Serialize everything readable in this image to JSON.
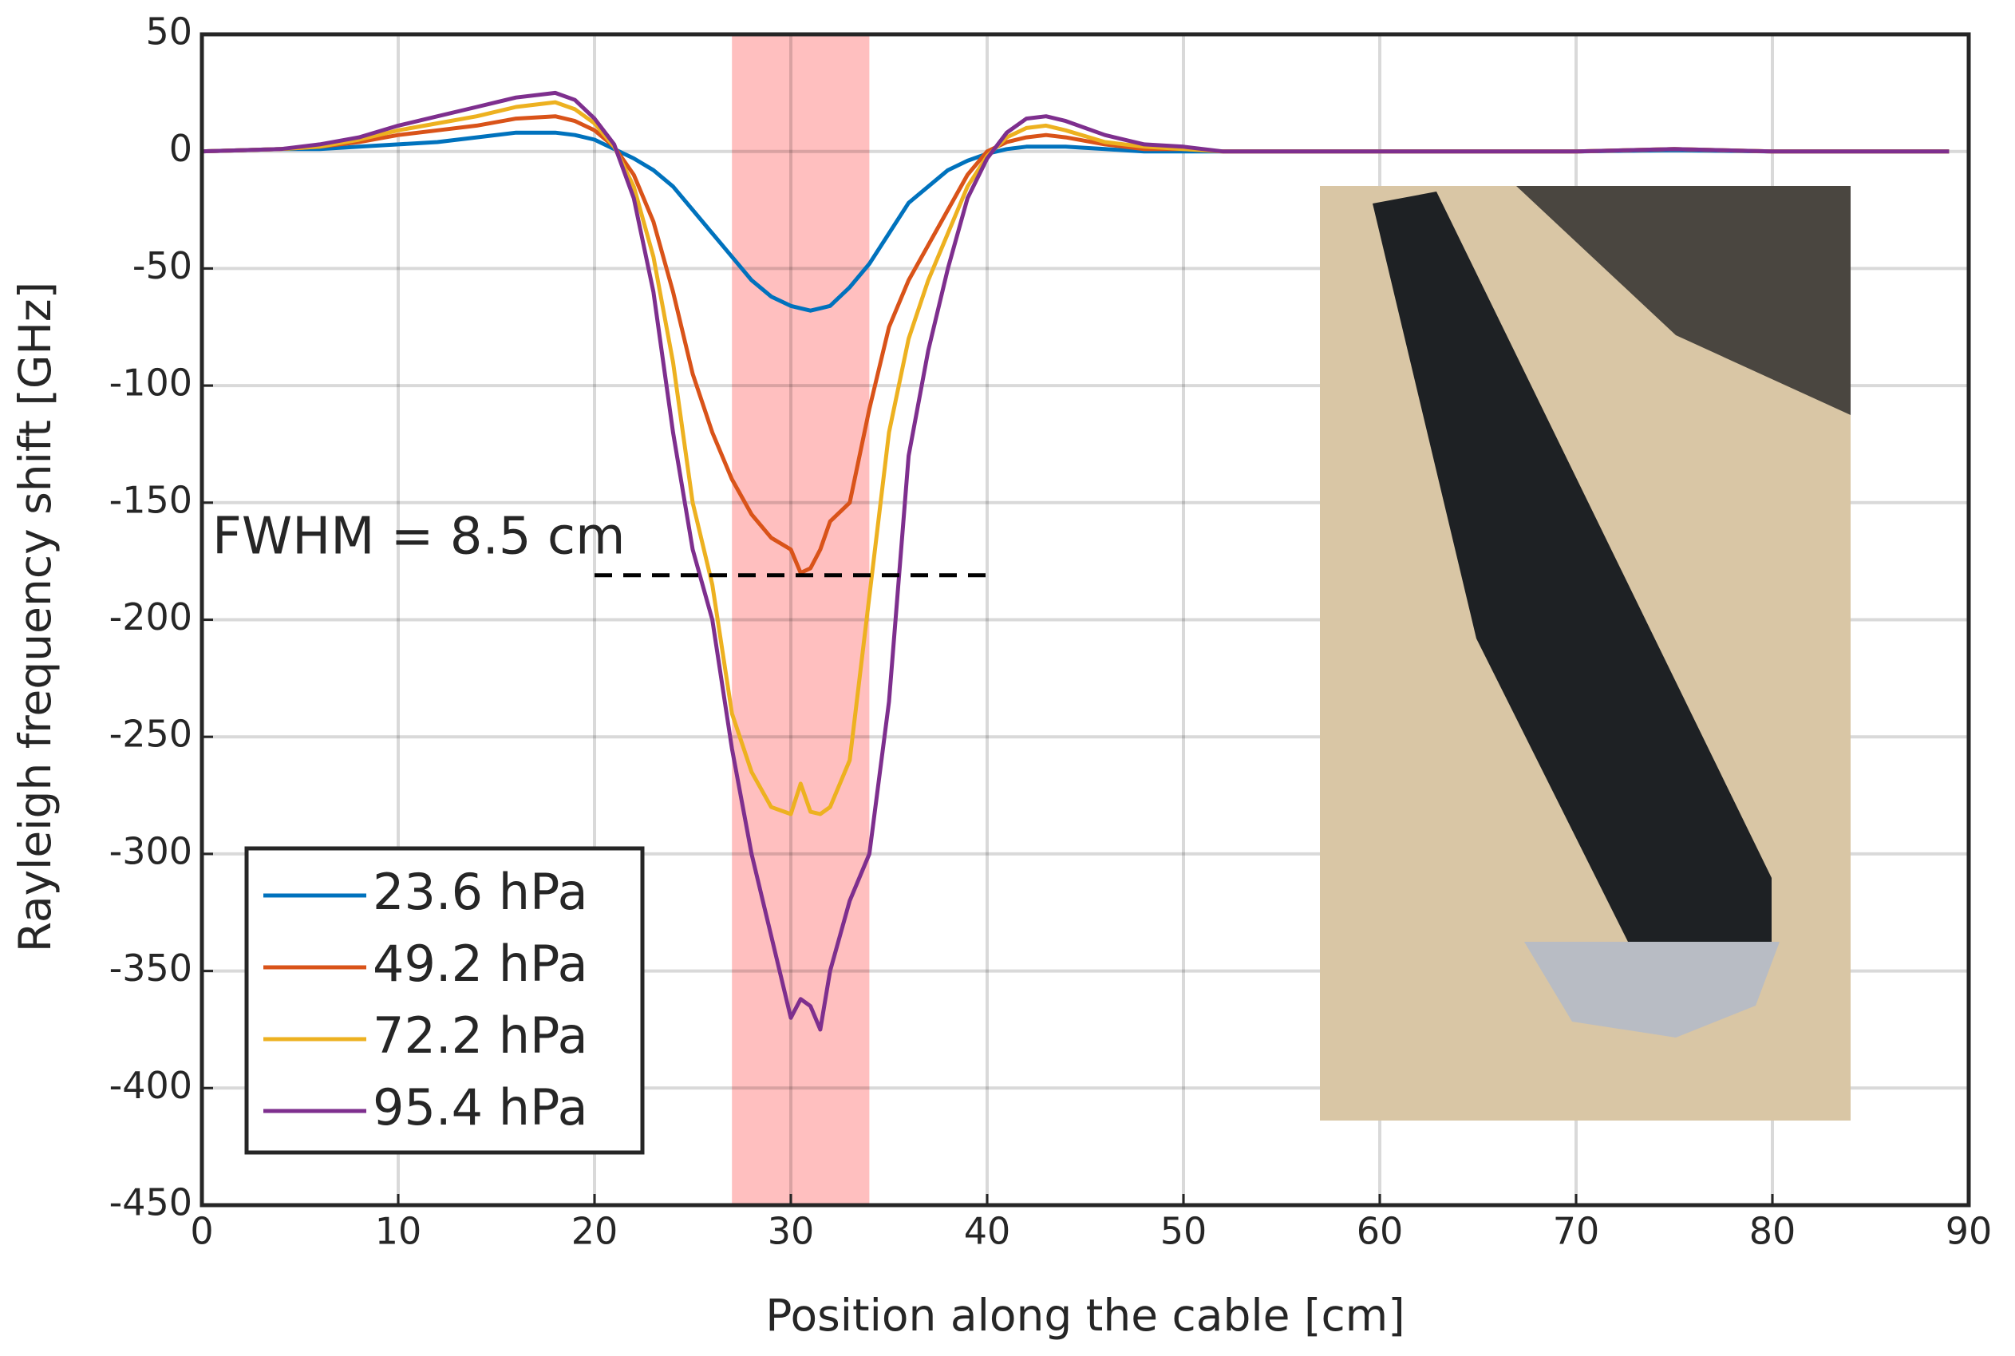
{
  "chart_data": {
    "type": "line",
    "xlabel": "Position along the cable [cm]",
    "ylabel": "Rayleigh frequency shift [GHz]",
    "x": [
      0,
      2,
      4,
      6,
      8,
      10,
      12,
      14,
      16,
      18,
      19,
      20,
      21,
      22,
      23,
      24,
      25,
      26,
      27,
      28,
      29,
      30,
      30.5,
      31,
      31.5,
      32,
      33,
      34,
      35,
      36,
      37,
      38,
      39,
      40,
      41,
      42,
      43,
      44,
      46,
      48,
      50,
      52,
      55,
      60,
      65,
      70,
      75,
      80,
      85,
      89
    ],
    "series": [
      {
        "name": "23.6 hPa",
        "color": "#0072bd",
        "values": [
          0,
          0.5,
          1,
          1,
          2,
          3,
          4,
          6,
          8,
          8,
          7,
          5,
          1,
          -3,
          -8,
          -15,
          -25,
          -35,
          -45,
          -55,
          -62,
          -66,
          -67,
          -68,
          -67,
          -66,
          -58,
          -48,
          -35,
          -22,
          -15,
          -8,
          -4,
          -1,
          1,
          2,
          2,
          2,
          1,
          0,
          0,
          0,
          0,
          0,
          0,
          0,
          0.5,
          0,
          0,
          0
        ]
      },
      {
        "name": "49.2 hPa",
        "color": "#d95319",
        "values": [
          0,
          0.5,
          1,
          2,
          4,
          7,
          9,
          11,
          14,
          15,
          13,
          9,
          2,
          -10,
          -30,
          -60,
          -95,
          -120,
          -140,
          -155,
          -165,
          -170,
          -180,
          -178,
          -170,
          -158,
          -150,
          -110,
          -75,
          -55,
          -40,
          -25,
          -10,
          0,
          4,
          6,
          7,
          6,
          3,
          1,
          1,
          0,
          0,
          0,
          0,
          0,
          1,
          0,
          0,
          0
        ]
      },
      {
        "name": "72.2 hPa",
        "color": "#edb120",
        "values": [
          0,
          0.5,
          1,
          2,
          5,
          9,
          12,
          15,
          19,
          21,
          18,
          12,
          2,
          -15,
          -45,
          -90,
          -150,
          -185,
          -240,
          -265,
          -280,
          -283,
          -270,
          -282,
          -283,
          -280,
          -260,
          -190,
          -120,
          -80,
          -55,
          -35,
          -15,
          -2,
          6,
          10,
          11,
          9,
          4,
          2,
          1,
          0,
          0,
          0,
          0,
          0,
          1,
          0,
          0,
          0
        ]
      },
      {
        "name": "95.4 hPa",
        "color": "#7e2f8e",
        "values": [
          0,
          0.5,
          1,
          3,
          6,
          11,
          15,
          19,
          23,
          25,
          22,
          14,
          3,
          -20,
          -60,
          -120,
          -170,
          -200,
          -255,
          -300,
          -335,
          -370,
          -362,
          -365,
          -375,
          -350,
          -320,
          -300,
          -235,
          -130,
          -85,
          -50,
          -20,
          -3,
          8,
          14,
          15,
          13,
          7,
          3,
          2,
          0,
          0,
          0,
          0,
          0,
          1,
          0,
          0,
          0
        ]
      }
    ],
    "xlim": [
      0,
      90
    ],
    "xticks": [
      0,
      10,
      20,
      30,
      40,
      50,
      60,
      70,
      80,
      90
    ],
    "ylim": [
      -450,
      50
    ],
    "yticks": [
      -450,
      -400,
      -350,
      -300,
      -250,
      -200,
      -150,
      -100,
      -50,
      0,
      50
    ],
    "grid": true,
    "legend_position": "lower left",
    "shaded_region": {
      "xlim": [
        27,
        34
      ],
      "color": "#ffbfbf"
    },
    "reference_line": {
      "y": -181,
      "xlim": [
        20,
        40
      ]
    },
    "annotation": "FWHM = 8.5 cm"
  }
}
